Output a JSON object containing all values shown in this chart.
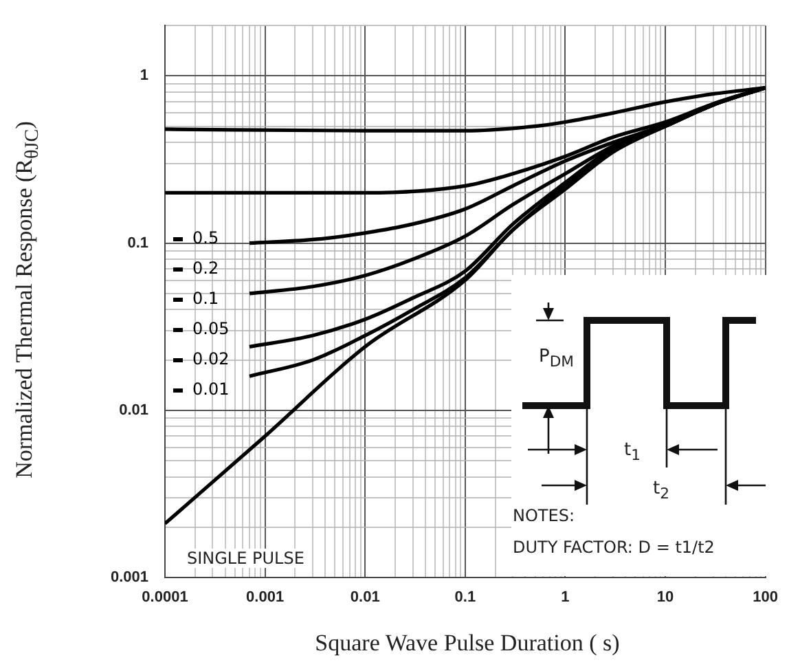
{
  "chart_data": {
    "type": "line",
    "xlabel": "Square Wave Pulse Duration ( s)",
    "ylabel": "Normalized Thermal Response (R$_{θJC}$)",
    "log": "xy",
    "grid": true,
    "legend": "left",
    "marker": "none",
    "xlim": [
      0.0001,
      100
    ],
    "xticks": [
      0.0001,
      {
        "value": 0.0002,
        "label": null
      },
      {
        "value": 0.0003,
        "label": null
      },
      {
        "value": 0.0004,
        "label": null
      },
      {
        "value": 0.0005,
        "label": null
      },
      {
        "value": 0.0006,
        "label": null
      },
      {
        "value": 0.0007,
        "label": null
      },
      {
        "value": 0.0008,
        "label": null
      },
      {
        "value": 0.0009,
        "label": null
      },
      0.001,
      {
        "value": 0.002,
        "label": null
      },
      {
        "value": 0.003,
        "label": null
      },
      {
        "value": 0.004,
        "label": null
      },
      {
        "value": 0.005,
        "label": null
      },
      {
        "value": 0.006,
        "label": null
      },
      {
        "value": 0.007,
        "label": null
      },
      {
        "value": 0.008,
        "label": null
      },
      {
        "value": 0.009,
        "label": null
      },
      0.01,
      {
        "value": 0.02,
        "label": null
      },
      {
        "value": 0.03,
        "label": null
      },
      {
        "value": 0.04,
        "label": null
      },
      {
        "value": 0.05,
        "label": null
      },
      {
        "value": 0.06,
        "label": null
      },
      {
        "value": 0.07,
        "label": null
      },
      {
        "value": 0.08,
        "label": null
      },
      {
        "value": 0.09,
        "label": null
      },
      0.1,
      {
        "value": 0.2,
        "label": null
      },
      {
        "value": 0.3,
        "label": null
      },
      {
        "value": 0.4,
        "label": null
      },
      {
        "value": 0.5,
        "label": null
      },
      {
        "value": 0.6,
        "label": null
      },
      {
        "value": 0.7,
        "label": null
      },
      {
        "value": 0.8,
        "label": null
      },
      {
        "value": 0.9,
        "label": null
      },
      1,
      {
        "value": 2,
        "label": null
      },
      {
        "value": 3,
        "label": null
      },
      {
        "value": 4,
        "label": null
      },
      {
        "value": 5,
        "label": null
      },
      {
        "value": 6,
        "label": null
      },
      {
        "value": 7,
        "label": null
      },
      {
        "value": 8,
        "label": null
      },
      {
        "value": 9,
        "label": null
      },
      10,
      {
        "value": 20,
        "label": null
      },
      {
        "value": 30,
        "label": null
      },
      {
        "value": 40,
        "label": null
      },
      {
        "value": 50,
        "label": null
      },
      {
        "value": 60,
        "label": null
      },
      {
        "value": 70,
        "label": null
      },
      {
        "value": 80,
        "label": null
      },
      {
        "value": 90,
        "label": null
      },
      100
    ],
    "ylim": [
      0.001,
      2
    ],
    "yticks": [
      0.001,
      {
        "value": 0.002,
        "label": null
      },
      {
        "value": 0.003,
        "label": null
      },
      {
        "value": 0.004,
        "label": null
      },
      {
        "value": 0.005,
        "label": null
      },
      {
        "value": 0.006,
        "label": null
      },
      {
        "value": 0.007,
        "label": null
      },
      {
        "value": 0.008,
        "label": null
      },
      {
        "value": 0.009,
        "label": null
      },
      0.01,
      {
        "value": 0.02,
        "label": null
      },
      {
        "value": 0.03,
        "label": null
      },
      {
        "value": 0.04,
        "label": null
      },
      {
        "value": 0.05,
        "label": null
      },
      {
        "value": 0.06,
        "label": null
      },
      {
        "value": 0.07,
        "label": null
      },
      {
        "value": 0.08,
        "label": null
      },
      {
        "value": 0.09,
        "label": null
      },
      0.1,
      {
        "value": 0.2,
        "label": null
      },
      {
        "value": 0.3,
        "label": null
      },
      {
        "value": 0.4,
        "label": null
      },
      {
        "value": 0.5,
        "label": null
      },
      {
        "value": 0.6,
        "label": null
      },
      {
        "value": 0.7,
        "label": null
      },
      {
        "value": 0.8,
        "label": null
      },
      {
        "value": 0.9,
        "label": null
      },
      1,
      {
        "value": 2,
        "label": null
      }
    ],
    "series": [
      {
        "name": "0.5",
        "color": "#000000",
        "x": [
          0.0001,
          0.01,
          0.1,
          0.5,
          1,
          3,
          10,
          30,
          100
        ],
        "values": [
          0.48,
          0.47,
          0.47,
          0.5,
          0.53,
          0.6,
          0.7,
          0.78,
          0.85
        ]
      },
      {
        "name": "0.2",
        "color": "#000000",
        "x": [
          0.0001,
          0.01,
          0.1,
          0.3,
          1,
          3,
          10,
          30,
          100
        ],
        "values": [
          0.2,
          0.2,
          0.22,
          0.26,
          0.33,
          0.43,
          0.53,
          0.68,
          0.85
        ]
      },
      {
        "name": "0.1",
        "color": "#000000",
        "x": [
          0.0007,
          0.003,
          0.01,
          0.03,
          0.1,
          0.3,
          1,
          3,
          10,
          30,
          100
        ],
        "values": [
          0.1,
          0.105,
          0.115,
          0.13,
          0.16,
          0.22,
          0.31,
          0.4,
          0.51,
          0.68,
          0.85
        ]
      },
      {
        "name": "0.05",
        "color": "#000000",
        "x": [
          0.0007,
          0.003,
          0.01,
          0.03,
          0.1,
          0.3,
          1,
          3,
          10,
          30,
          100
        ],
        "values": [
          0.05,
          0.055,
          0.064,
          0.08,
          0.11,
          0.17,
          0.26,
          0.38,
          0.5,
          0.67,
          0.85
        ]
      },
      {
        "name": "0.02",
        "color": "#000000",
        "x": [
          0.0007,
          0.003,
          0.01,
          0.03,
          0.1,
          0.3,
          1,
          3,
          10,
          30,
          100
        ],
        "values": [
          0.024,
          0.028,
          0.035,
          0.047,
          0.068,
          0.13,
          0.23,
          0.37,
          0.5,
          0.67,
          0.85
        ]
      },
      {
        "name": "0.01",
        "color": "#000000",
        "x": [
          0.0007,
          0.003,
          0.01,
          0.03,
          0.1,
          0.3,
          1,
          3,
          10,
          30,
          100
        ],
        "values": [
          0.016,
          0.02,
          0.028,
          0.04,
          0.062,
          0.12,
          0.22,
          0.36,
          0.5,
          0.67,
          0.85
        ]
      },
      {
        "color": "#000000",
        "x": [
          0.0001,
          0.001,
          0.01,
          0.1,
          0.3,
          1,
          3,
          10,
          30,
          100
        ],
        "values": [
          0.0021,
          0.007,
          0.024,
          0.06,
          0.12,
          0.21,
          0.35,
          0.5,
          0.67,
          0.85
        ]
      }
    ],
    "annotations": [
      "SINGLE PULSE",
      "P$_{DM}$",
      "t$_{1}$",
      "t$_{2}$",
      "NOTES:",
      "DUTY FACTOR: D = t1/t2"
    ]
  }
}
